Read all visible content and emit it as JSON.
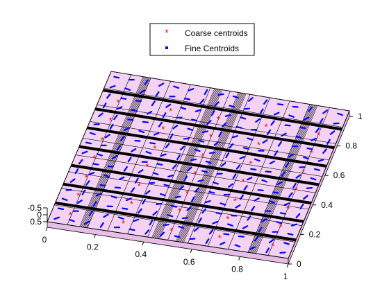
{
  "chart_data": {
    "type": "scatter",
    "view": "3d",
    "legend": {
      "placement": "top-center",
      "entries": [
        {
          "label": "Coarse centroids",
          "marker": "*",
          "color": "#ff0000"
        },
        {
          "label": "Fine Centroids",
          "marker": ".",
          "color": "#0000ff"
        }
      ]
    },
    "axes": {
      "x": {
        "lim": [
          0,
          1
        ],
        "ticks": [
          "0",
          "0.2",
          "0.4",
          "0.6",
          "0.8",
          "1"
        ]
      },
      "y": {
        "lim": [
          0,
          1
        ],
        "ticks": [
          "0",
          "0.2",
          "0.4",
          "0.6",
          "0.8",
          "1"
        ]
      },
      "z": {
        "lim": [
          -0.5,
          0.5
        ],
        "ticks": [
          "-0.5",
          "0",
          "0.5"
        ]
      }
    },
    "surface": {
      "face_color": "#f3d2f3",
      "edge_color": "#000000",
      "coarse_bands_x": [
        0.15,
        0.45,
        0.55,
        0.85
      ],
      "coarse_bands_y": [
        0.125,
        0.25,
        0.375,
        0.5,
        0.625,
        0.75,
        0.875
      ],
      "fine_cols": 12,
      "fine_rows": 9
    },
    "series": [
      {
        "name": "Coarse centroids",
        "color": "#ff0000",
        "marker": "*",
        "x": [
          0.08,
          0.3,
          0.5,
          0.7,
          0.92,
          0.08,
          0.3,
          0.5,
          0.7,
          0.92,
          0.08,
          0.3,
          0.5,
          0.7,
          0.92,
          0.08,
          0.3,
          0.5,
          0.7,
          0.92,
          0.08,
          0.3,
          0.5,
          0.7,
          0.92,
          0.08,
          0.3,
          0.5,
          0.7,
          0.92,
          0.08,
          0.3,
          0.5,
          0.7,
          0.92
        ],
        "y": [
          0.06,
          0.06,
          0.06,
          0.06,
          0.06,
          0.19,
          0.19,
          0.19,
          0.19,
          0.19,
          0.31,
          0.31,
          0.31,
          0.31,
          0.31,
          0.44,
          0.44,
          0.44,
          0.44,
          0.44,
          0.56,
          0.56,
          0.56,
          0.56,
          0.56,
          0.69,
          0.69,
          0.69,
          0.69,
          0.69,
          0.81,
          0.81,
          0.81,
          0.81,
          0.81
        ],
        "z": [
          0,
          0,
          0,
          0,
          0,
          0,
          0,
          0,
          0,
          0,
          0,
          0,
          0,
          0,
          0,
          0,
          0,
          0,
          0,
          0,
          0,
          0,
          0,
          0,
          0,
          0,
          0,
          0,
          0,
          0,
          0,
          0,
          0,
          0,
          0
        ]
      }
    ]
  }
}
